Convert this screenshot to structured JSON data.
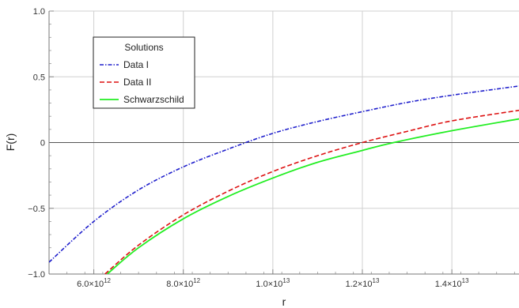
{
  "chart_data": {
    "type": "line",
    "title": "",
    "xlabel": "r",
    "ylabel": "F(r)",
    "xlim": [
      5000000000000.0,
      15500000000000.0
    ],
    "ylim": [
      -1.0,
      1.0
    ],
    "grid": true,
    "x_ticks": [
      {
        "value": 6000000000000.0,
        "mant": "6.0",
        "exp": "12"
      },
      {
        "value": 8000000000000.0,
        "mant": "8.0",
        "exp": "12"
      },
      {
        "value": 10000000000000.0,
        "mant": "1.0",
        "exp": "13"
      },
      {
        "value": 12000000000000.0,
        "mant": "1.2",
        "exp": "13"
      },
      {
        "value": 14000000000000.0,
        "mant": "1.4",
        "exp": "13"
      }
    ],
    "y_ticks": [
      {
        "value": -1.0,
        "label": "−1.0"
      },
      {
        "value": -0.5,
        "label": "−0.5"
      },
      {
        "value": 0,
        "label": "0"
      },
      {
        "value": 0.5,
        "label": "0.5"
      },
      {
        "value": 1.0,
        "label": "1.0"
      }
    ],
    "legend": {
      "title": "Solutions",
      "placement": "top-left"
    },
    "series": [
      {
        "name": "Data I",
        "color": "#1f1fcc",
        "dash": "dash-dot",
        "x": [
          5000000000000.0,
          6000000000000.0,
          7000000000000.0,
          8000000000000.0,
          9000000000000.0,
          10000000000000.0,
          11000000000000.0,
          12000000000000.0,
          13000000000000.0,
          14000000000000.0,
          15500000000000.0
        ],
        "y": [
          -0.91,
          -0.6,
          -0.36,
          -0.185,
          -0.05,
          0.07,
          0.16,
          0.235,
          0.305,
          0.36,
          0.43
        ]
      },
      {
        "name": "Data II",
        "color": "#dd1111",
        "dash": "dashed",
        "x": [
          6250000000000.0,
          7000000000000.0,
          8000000000000.0,
          9000000000000.0,
          10000000000000.0,
          11000000000000.0,
          12000000000000.0,
          13000000000000.0,
          14000000000000.0,
          15500000000000.0
        ],
        "y": [
          -1.0,
          -0.78,
          -0.55,
          -0.37,
          -0.22,
          -0.1,
          0.0,
          0.085,
          0.165,
          0.245
        ]
      },
      {
        "name": "Schwarzschild",
        "color": "#22ee22",
        "dash": "solid",
        "x": [
          6300000000000.0,
          7000000000000.0,
          8000000000000.0,
          9000000000000.0,
          10000000000000.0,
          11000000000000.0,
          12000000000000.0,
          12700000000000.0,
          14000000000000.0,
          15500000000000.0
        ],
        "y": [
          -1.0,
          -0.8,
          -0.58,
          -0.41,
          -0.27,
          -0.15,
          -0.06,
          0.0,
          0.09,
          0.18
        ]
      }
    ]
  }
}
